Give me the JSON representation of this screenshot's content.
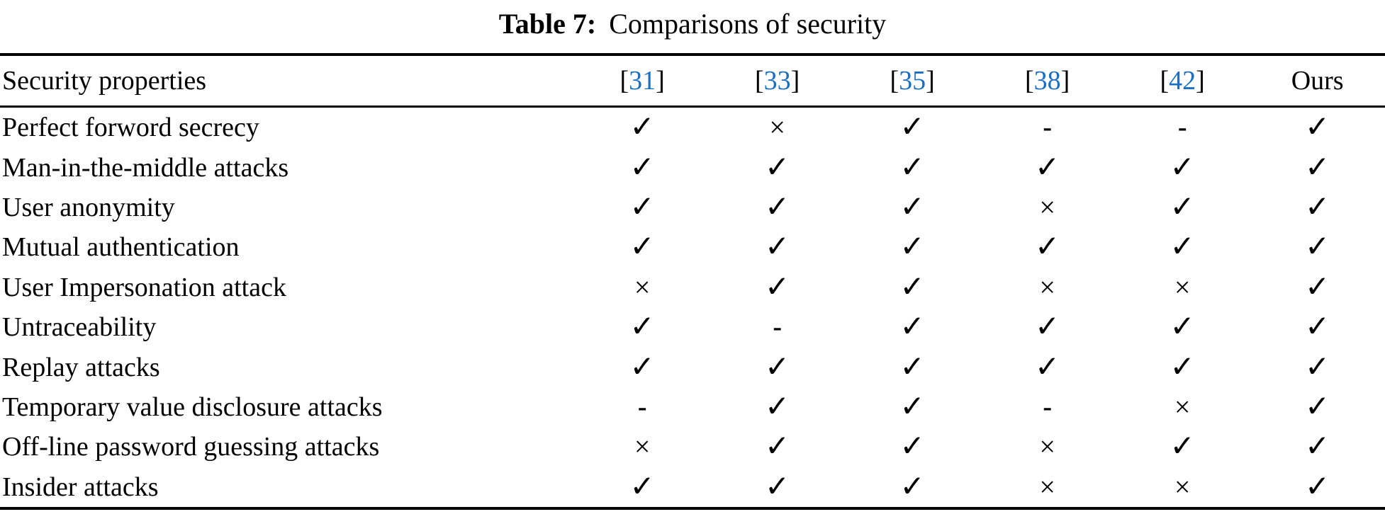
{
  "caption": {
    "label": "Table 7:",
    "text": "Comparisons of security"
  },
  "colors": {
    "citation_blue": "#1a6fc4",
    "text": "#000000",
    "background": "#ffffff"
  },
  "table": {
    "header": {
      "first_col": "Security properties",
      "columns": [
        {
          "type": "citation",
          "number": "31"
        },
        {
          "type": "citation",
          "number": "33"
        },
        {
          "type": "citation",
          "number": "35"
        },
        {
          "type": "citation",
          "number": "38"
        },
        {
          "type": "citation",
          "number": "42"
        },
        {
          "type": "plain",
          "label": "Ours"
        }
      ]
    },
    "symbols": {
      "check": "✓",
      "cross": "×",
      "dash": "-"
    },
    "rows": [
      {
        "property": "Perfect forword secrecy",
        "values": [
          "check",
          "cross",
          "check",
          "dash",
          "dash",
          "check"
        ]
      },
      {
        "property": "Man-in-the-middle attacks",
        "values": [
          "check",
          "check",
          "check",
          "check",
          "check",
          "check"
        ]
      },
      {
        "property": "User anonymity",
        "values": [
          "check",
          "check",
          "check",
          "cross",
          "check",
          "check"
        ]
      },
      {
        "property": "Mutual authentication",
        "values": [
          "check",
          "check",
          "check",
          "check",
          "check",
          "check"
        ]
      },
      {
        "property": "User Impersonation attack",
        "values": [
          "cross",
          "check",
          "check",
          "cross",
          "cross",
          "check"
        ]
      },
      {
        "property": "Untraceability",
        "values": [
          "check",
          "dash",
          "check",
          "check",
          "check",
          "check"
        ]
      },
      {
        "property": "Replay attacks",
        "values": [
          "check",
          "check",
          "check",
          "check",
          "check",
          "check"
        ]
      },
      {
        "property": "Temporary value disclosure attacks",
        "values": [
          "dash",
          "check",
          "check",
          "dash",
          "cross",
          "check"
        ]
      },
      {
        "property": "Off-line password guessing attacks",
        "values": [
          "cross",
          "check",
          "check",
          "cross",
          "check",
          "check"
        ]
      },
      {
        "property": "Insider attacks",
        "values": [
          "check",
          "check",
          "check",
          "cross",
          "cross",
          "check"
        ]
      }
    ]
  }
}
